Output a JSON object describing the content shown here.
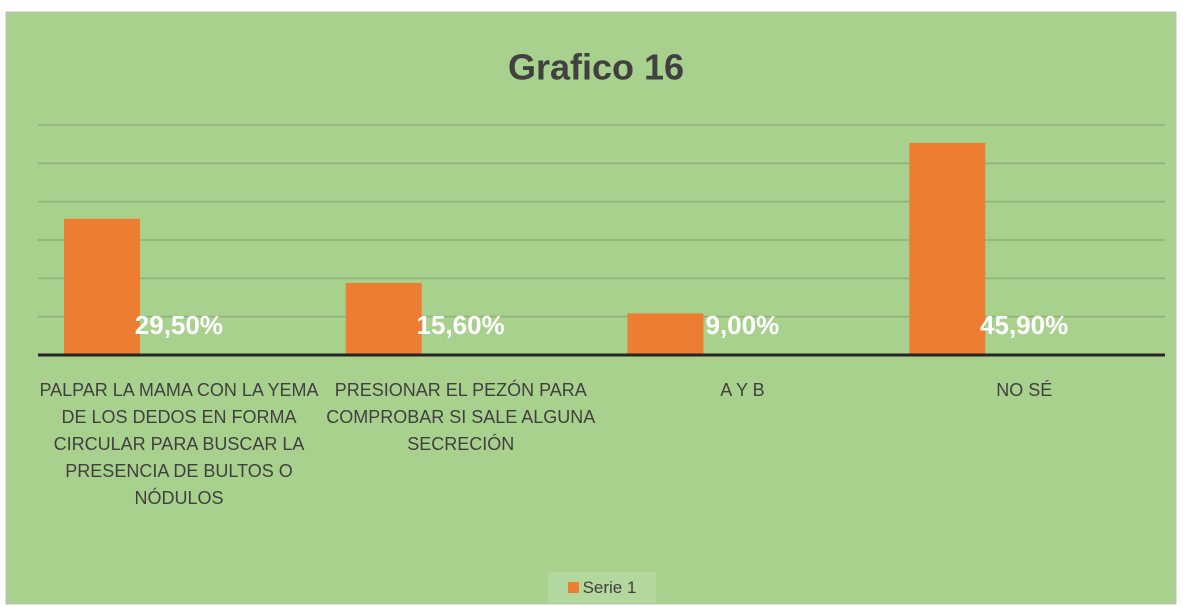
{
  "chart_data": {
    "type": "bar",
    "title": "Grafico 16",
    "categories": [
      "PALPAR LA MAMA CON LA YEMA DE LOS DEDOS EN FORMA CIRCULAR PARA BUSCAR LA PRESENCIA DE BULTOS O NÓDULOS",
      "PRESIONAR EL PEZÓN PARA COMPROBAR SI SALE ALGUNA SECRECIÓN",
      "A Y B",
      "NO SÉ"
    ],
    "series": [
      {
        "name": "Serie 1",
        "color": "#ed7d31",
        "values": [
          29.5,
          15.6,
          9.0,
          45.9
        ],
        "value_labels": [
          "29,50%",
          "15,60%",
          "9,00%",
          "45,90%"
        ]
      }
    ],
    "ylim": [
      0,
      49.8
    ],
    "yticks": [
      0,
      8.3,
      16.6,
      24.9,
      33.2,
      41.5,
      49.8
    ],
    "grid": true,
    "legend": "bottom"
  }
}
